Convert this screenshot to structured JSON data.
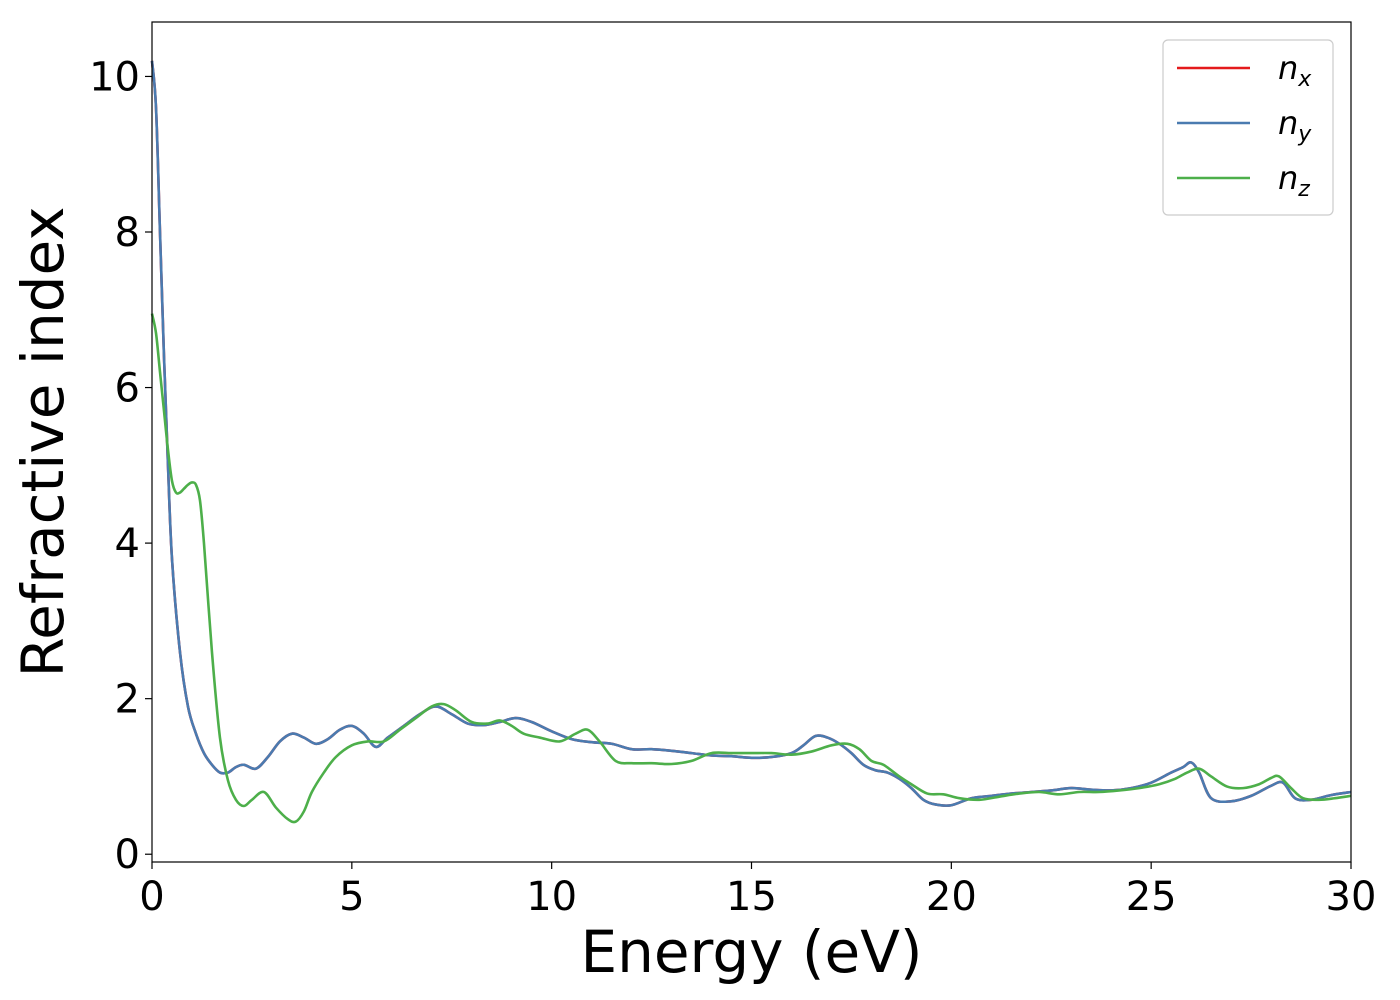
{
  "chart_data": {
    "type": "line",
    "title": "",
    "xlabel": "Energy (eV)",
    "ylabel": "Refractive index",
    "xlim": [
      0,
      30
    ],
    "ylim": [
      -0.1,
      10.7
    ],
    "xticks": [
      0,
      5,
      10,
      15,
      20,
      25,
      30
    ],
    "yticks": [
      0,
      2,
      4,
      6,
      8,
      10
    ],
    "grid": false,
    "legend_position": "top-right",
    "series": [
      {
        "name": "n",
        "subscript": "x",
        "color": "#e41a1c",
        "x": [
          0,
          0.1,
          0.2,
          0.3,
          0.4,
          0.5,
          0.7,
          0.9,
          1.1,
          1.3,
          1.5,
          1.7,
          1.9,
          2.1,
          2.3,
          2.6,
          2.9,
          3.2,
          3.5,
          3.8,
          4.1,
          4.4,
          4.7,
          5.0,
          5.3,
          5.6,
          5.9,
          6.3,
          6.7,
          7.1,
          7.5,
          7.9,
          8.3,
          8.7,
          9.1,
          9.5,
          10.0,
          10.5,
          11.0,
          11.5,
          12.0,
          12.5,
          13.0,
          13.5,
          14.0,
          14.5,
          15.0,
          15.5,
          16.0,
          16.3,
          16.6,
          16.9,
          17.2,
          17.5,
          17.8,
          18.1,
          18.4,
          18.7,
          19.0,
          19.3,
          19.6,
          20.0,
          20.5,
          21.0,
          21.5,
          22.0,
          22.5,
          23.0,
          23.5,
          24.0,
          24.5,
          25.0,
          25.5,
          25.8,
          26.0,
          26.2,
          26.5,
          27.0,
          27.5,
          28.0,
          28.3,
          28.6,
          29.0,
          29.5,
          30.0
        ],
        "y": [
          10.2,
          9.6,
          8.0,
          6.4,
          5.0,
          3.8,
          2.6,
          1.9,
          1.55,
          1.3,
          1.15,
          1.05,
          1.05,
          1.12,
          1.15,
          1.1,
          1.25,
          1.45,
          1.55,
          1.5,
          1.42,
          1.48,
          1.6,
          1.65,
          1.55,
          1.38,
          1.5,
          1.65,
          1.8,
          1.9,
          1.8,
          1.68,
          1.66,
          1.7,
          1.75,
          1.7,
          1.58,
          1.48,
          1.44,
          1.42,
          1.35,
          1.35,
          1.33,
          1.3,
          1.27,
          1.26,
          1.24,
          1.25,
          1.3,
          1.4,
          1.52,
          1.5,
          1.42,
          1.3,
          1.15,
          1.08,
          1.05,
          0.97,
          0.85,
          0.7,
          0.64,
          0.63,
          0.72,
          0.75,
          0.78,
          0.8,
          0.82,
          0.85,
          0.83,
          0.82,
          0.85,
          0.92,
          1.05,
          1.12,
          1.18,
          1.05,
          0.72,
          0.68,
          0.75,
          0.88,
          0.92,
          0.72,
          0.7,
          0.76,
          0.8
        ]
      },
      {
        "name": "n",
        "subscript": "y",
        "color": "#4a7bb0",
        "x": [
          0,
          0.1,
          0.2,
          0.3,
          0.4,
          0.5,
          0.7,
          0.9,
          1.1,
          1.3,
          1.5,
          1.7,
          1.9,
          2.1,
          2.3,
          2.6,
          2.9,
          3.2,
          3.5,
          3.8,
          4.1,
          4.4,
          4.7,
          5.0,
          5.3,
          5.6,
          5.9,
          6.3,
          6.7,
          7.1,
          7.5,
          7.9,
          8.3,
          8.7,
          9.1,
          9.5,
          10.0,
          10.5,
          11.0,
          11.5,
          12.0,
          12.5,
          13.0,
          13.5,
          14.0,
          14.5,
          15.0,
          15.5,
          16.0,
          16.3,
          16.6,
          16.9,
          17.2,
          17.5,
          17.8,
          18.1,
          18.4,
          18.7,
          19.0,
          19.3,
          19.6,
          20.0,
          20.5,
          21.0,
          21.5,
          22.0,
          22.5,
          23.0,
          23.5,
          24.0,
          24.5,
          25.0,
          25.5,
          25.8,
          26.0,
          26.2,
          26.5,
          27.0,
          27.5,
          28.0,
          28.3,
          28.6,
          29.0,
          29.5,
          30.0
        ],
        "y": [
          10.2,
          9.6,
          8.0,
          6.4,
          5.0,
          3.8,
          2.6,
          1.9,
          1.55,
          1.3,
          1.15,
          1.05,
          1.05,
          1.12,
          1.15,
          1.1,
          1.25,
          1.45,
          1.55,
          1.5,
          1.42,
          1.48,
          1.6,
          1.65,
          1.55,
          1.38,
          1.5,
          1.65,
          1.8,
          1.9,
          1.8,
          1.68,
          1.66,
          1.7,
          1.75,
          1.7,
          1.58,
          1.48,
          1.44,
          1.42,
          1.35,
          1.35,
          1.33,
          1.3,
          1.27,
          1.26,
          1.24,
          1.25,
          1.3,
          1.4,
          1.52,
          1.5,
          1.42,
          1.3,
          1.15,
          1.08,
          1.05,
          0.97,
          0.85,
          0.7,
          0.64,
          0.63,
          0.72,
          0.75,
          0.78,
          0.8,
          0.82,
          0.85,
          0.83,
          0.82,
          0.85,
          0.92,
          1.05,
          1.12,
          1.18,
          1.05,
          0.72,
          0.68,
          0.75,
          0.88,
          0.92,
          0.72,
          0.7,
          0.76,
          0.8
        ]
      },
      {
        "name": "n",
        "subscript": "z",
        "color": "#4daf4a",
        "x": [
          0,
          0.1,
          0.2,
          0.3,
          0.4,
          0.5,
          0.6,
          0.7,
          0.8,
          0.9,
          1.0,
          1.1,
          1.2,
          1.3,
          1.5,
          1.7,
          1.9,
          2.1,
          2.3,
          2.5,
          2.8,
          3.1,
          3.4,
          3.6,
          3.8,
          4.0,
          4.3,
          4.6,
          5.0,
          5.4,
          5.8,
          6.2,
          6.6,
          7.0,
          7.3,
          7.6,
          8.0,
          8.4,
          8.7,
          9.0,
          9.3,
          9.7,
          10.2,
          10.6,
          10.9,
          11.2,
          11.6,
          12.0,
          12.5,
          13.0,
          13.5,
          14.0,
          14.5,
          15.0,
          15.5,
          16.0,
          16.5,
          17.0,
          17.4,
          17.7,
          18.0,
          18.3,
          18.7,
          19.0,
          19.4,
          19.8,
          20.2,
          20.7,
          21.2,
          21.7,
          22.2,
          22.7,
          23.2,
          23.7,
          24.2,
          24.7,
          25.2,
          25.6,
          25.9,
          26.2,
          26.5,
          26.9,
          27.3,
          27.7,
          28.0,
          28.2,
          28.5,
          28.8,
          29.2,
          29.6,
          30.0
        ],
        "y": [
          6.95,
          6.7,
          6.2,
          5.7,
          5.2,
          4.8,
          4.65,
          4.65,
          4.7,
          4.75,
          4.78,
          4.75,
          4.55,
          4.0,
          2.6,
          1.5,
          0.95,
          0.7,
          0.62,
          0.7,
          0.8,
          0.6,
          0.45,
          0.42,
          0.55,
          0.8,
          1.05,
          1.25,
          1.4,
          1.45,
          1.45,
          1.6,
          1.75,
          1.9,
          1.93,
          1.85,
          1.7,
          1.68,
          1.72,
          1.65,
          1.55,
          1.5,
          1.45,
          1.55,
          1.6,
          1.45,
          1.2,
          1.17,
          1.17,
          1.16,
          1.2,
          1.3,
          1.3,
          1.3,
          1.3,
          1.28,
          1.32,
          1.4,
          1.42,
          1.35,
          1.2,
          1.15,
          1.0,
          0.9,
          0.78,
          0.77,
          0.72,
          0.7,
          0.74,
          0.78,
          0.8,
          0.77,
          0.8,
          0.8,
          0.82,
          0.85,
          0.9,
          0.97,
          1.05,
          1.1,
          1.0,
          0.87,
          0.85,
          0.9,
          0.98,
          1.0,
          0.85,
          0.72,
          0.7,
          0.72,
          0.75
        ]
      }
    ]
  }
}
